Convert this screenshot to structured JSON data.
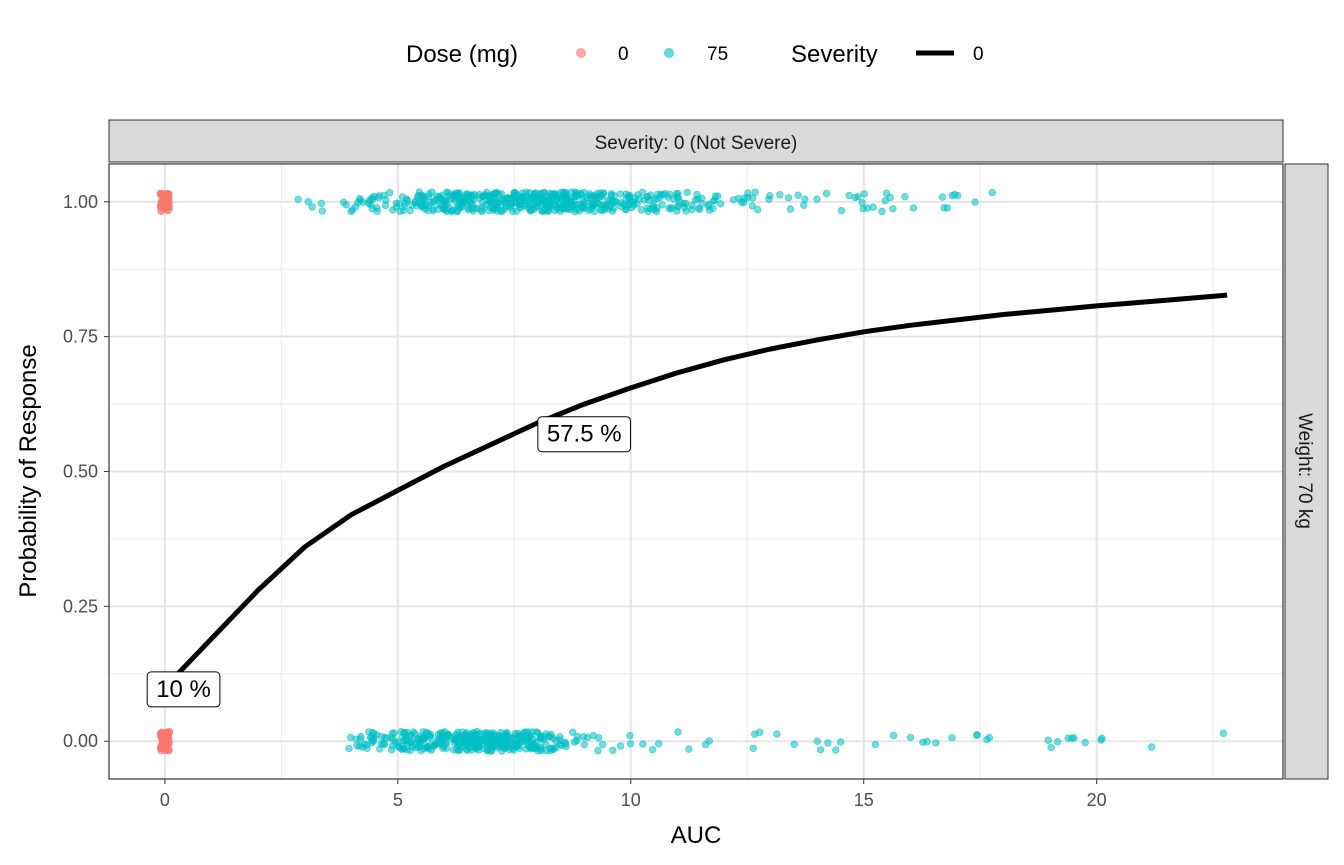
{
  "chart_data": {
    "type": "scatter",
    "xlabel": "AUC",
    "ylabel": "Probability of Response",
    "xlim": [
      -1.2,
      24.0
    ],
    "ylim": [
      -0.07,
      1.07
    ],
    "x_ticks": [
      0,
      5,
      10,
      15,
      20
    ],
    "x_tick_labels": [
      "0",
      "5",
      "10",
      "15",
      "20"
    ],
    "y_ticks": [
      0,
      0.25,
      0.5,
      0.75,
      1.0
    ],
    "y_tick_labels": [
      "0.00",
      "0.25",
      "0.50",
      "0.75",
      "1.00"
    ],
    "grid": true,
    "facet_top": "Severity: 0 (Not Severe)",
    "facet_right": "Weight: 70 kg",
    "legend": {
      "placement": "top",
      "dose_title": "Dose (mg)",
      "dose_entries": [
        {
          "label": "0",
          "color": "#F8766D"
        },
        {
          "label": "75",
          "color": "#00BFC4"
        }
      ],
      "severity_title": "Severity",
      "severity_entries": [
        {
          "label": "0",
          "color": "#000000"
        }
      ]
    },
    "curve": {
      "color": "#000000",
      "x": [
        0,
        1,
        2,
        3,
        4,
        5,
        6,
        7,
        8,
        9,
        10,
        11,
        12,
        13,
        14,
        15,
        16,
        17,
        18,
        19,
        20,
        21,
        22,
        22.8
      ],
      "y": [
        0.1,
        0.19,
        0.28,
        0.36,
        0.42,
        0.465,
        0.51,
        0.55,
        0.59,
        0.625,
        0.655,
        0.683,
        0.707,
        0.727,
        0.744,
        0.759,
        0.771,
        0.781,
        0.791,
        0.799,
        0.807,
        0.814,
        0.821,
        0.827
      ]
    },
    "annotations": [
      {
        "text": "10 %",
        "x": 0.4,
        "y": 0.097
      },
      {
        "text": "57.5 %",
        "x": 9.0,
        "y": 0.57
      }
    ],
    "series": [
      {
        "dose": "0",
        "color": "#F8766D",
        "y_level": 1,
        "count": 60,
        "x_range": [
          -0.1,
          0.1
        ],
        "jitter": 0.018
      },
      {
        "dose": "0",
        "color": "#F8766D",
        "y_level": 0,
        "count": 60,
        "x_range": [
          -0.1,
          0.1
        ],
        "jitter": 0.018
      },
      {
        "dose": "75",
        "color": "#00BFC4",
        "y_level": 1,
        "count": 540,
        "x_range": [
          2.8,
          18.2
        ],
        "x_peak": 7.8,
        "jitter": 0.018
      },
      {
        "dose": "75",
        "color": "#00BFC4",
        "y_level": 0,
        "count": 400,
        "x_range": [
          3.2,
          22.8
        ],
        "x_peak": 6.5,
        "jitter": 0.018
      }
    ]
  }
}
